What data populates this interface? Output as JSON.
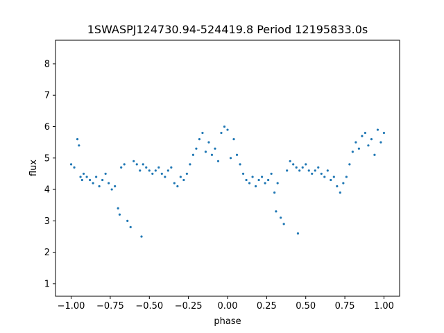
{
  "chart_data": {
    "type": "scatter",
    "title": "1SWASPJ124730.94-524419.8 Period 12195833.0s",
    "xlabel": "phase",
    "ylabel": "flux",
    "xlim": [
      -1.1,
      1.1
    ],
    "ylim": [
      0.6,
      8.75
    ],
    "xticks": [
      -1.0,
      -0.75,
      -0.5,
      -0.25,
      0.0,
      0.25,
      0.5,
      0.75,
      1.0
    ],
    "xtick_labels": [
      "−1.00",
      "−0.75",
      "−0.50",
      "−0.25",
      "0.00",
      "0.25",
      "0.50",
      "0.75",
      "1.00"
    ],
    "yticks": [
      1,
      2,
      3,
      4,
      5,
      6,
      7,
      8
    ],
    "ytick_labels": [
      "1",
      "2",
      "3",
      "4",
      "5",
      "6",
      "7",
      "8"
    ],
    "grid": false,
    "color": "#1f77b4",
    "series": [
      {
        "x": [
          -1.0,
          -0.98,
          -0.96,
          -0.95,
          -0.94,
          -0.93,
          -0.92,
          -0.9,
          -0.88,
          -0.86,
          -0.84,
          -0.82,
          -0.8,
          -0.78,
          -0.76,
          -0.74,
          -0.72,
          -0.7,
          -0.69,
          -0.68,
          -0.66,
          -0.64,
          -0.62,
          -0.6,
          -0.58,
          -0.56,
          -0.55,
          -0.54,
          -0.52,
          -0.5,
          -0.48,
          -0.46,
          -0.44,
          -0.42,
          -0.4,
          -0.38,
          -0.36,
          -0.34,
          -0.32,
          -0.3,
          -0.28,
          -0.26,
          -0.24,
          -0.22,
          -0.2,
          -0.18,
          -0.16,
          -0.14,
          -0.12,
          -0.1,
          -0.08,
          -0.06,
          -0.04,
          -0.02,
          0.0,
          0.02,
          0.04,
          0.06,
          0.08,
          0.1,
          0.12,
          0.14,
          0.16,
          0.18,
          0.2,
          0.22,
          0.24,
          0.26,
          0.28,
          0.3,
          0.31,
          0.32,
          0.34,
          0.36,
          0.38,
          0.4,
          0.42,
          0.44,
          0.45,
          0.46,
          0.48,
          0.5,
          0.52,
          0.54,
          0.56,
          0.58,
          0.6,
          0.62,
          0.64,
          0.66,
          0.68,
          0.7,
          0.72,
          0.74,
          0.76,
          0.78,
          0.8,
          0.82,
          0.84,
          0.86,
          0.88,
          0.9,
          0.92,
          0.94,
          0.96,
          0.98,
          1.0
        ],
        "y": [
          4.8,
          4.7,
          5.6,
          5.4,
          4.4,
          4.3,
          4.5,
          4.4,
          4.3,
          4.2,
          4.4,
          4.1,
          4.3,
          4.5,
          4.2,
          4.0,
          4.1,
          3.4,
          3.2,
          4.7,
          4.8,
          3.0,
          2.8,
          4.9,
          4.8,
          4.6,
          2.5,
          4.8,
          4.7,
          4.6,
          4.5,
          4.6,
          4.7,
          4.5,
          4.4,
          4.6,
          4.7,
          4.2,
          4.1,
          4.4,
          4.3,
          4.5,
          4.8,
          5.1,
          5.3,
          5.6,
          5.8,
          5.2,
          5.5,
          5.1,
          5.3,
          4.9,
          5.8,
          6.0,
          5.9,
          5.0,
          5.6,
          5.1,
          4.8,
          4.5,
          4.3,
          4.2,
          4.4,
          4.1,
          4.3,
          4.4,
          4.2,
          4.3,
          4.5,
          3.9,
          3.3,
          4.2,
          3.1,
          2.9,
          4.6,
          4.9,
          4.8,
          4.7,
          2.6,
          4.6,
          4.7,
          4.8,
          4.6,
          4.5,
          4.6,
          4.7,
          4.5,
          4.4,
          4.6,
          4.3,
          4.4,
          4.1,
          3.9,
          4.2,
          4.4,
          4.8,
          5.2,
          5.5,
          5.3,
          5.7,
          5.8,
          5.4,
          5.6,
          5.1,
          5.9,
          5.5,
          5.8
        ]
      }
    ]
  }
}
